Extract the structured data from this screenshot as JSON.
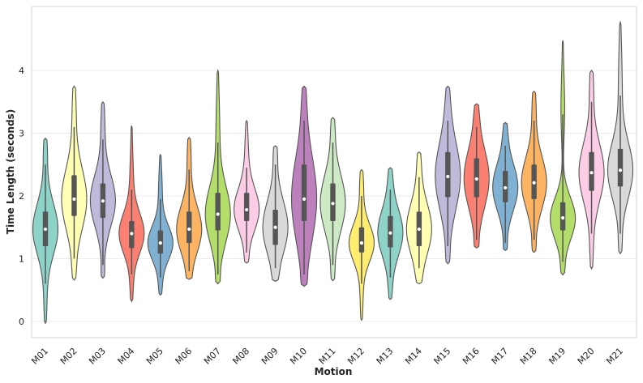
{
  "chart_data": {
    "type": "violin",
    "title": "",
    "xlabel": "Motion",
    "ylabel": "Time Length (seconds)",
    "ylim": [
      -0.25,
      4.9
    ],
    "yticks": [
      0,
      1,
      2,
      3,
      4
    ],
    "grid": true,
    "categories": [
      "M01",
      "M02",
      "M03",
      "M04",
      "M05",
      "M06",
      "M07",
      "M08",
      "M09",
      "M10",
      "M11",
      "M12",
      "M13",
      "M14",
      "M15",
      "M16",
      "M17",
      "M18",
      "M19",
      "M20",
      "M21"
    ],
    "colors": [
      "#8dd3c7",
      "#ffffb3",
      "#bebada",
      "#fb8072",
      "#80b1d3",
      "#fdb462",
      "#b3de69",
      "#fccde5",
      "#d9d9d9",
      "#bc80bd",
      "#ccebc5",
      "#ffed6f",
      "#8dd3c7",
      "#ffffb3",
      "#bebada",
      "#fb8072",
      "#80b1d3",
      "#fdb462",
      "#b3de69",
      "#fccde5",
      "#d9d9d9"
    ],
    "series": [
      {
        "name": "M01",
        "min": -0.03,
        "q1": 1.2,
        "median": 1.47,
        "q3": 1.75,
        "max": 2.92,
        "whisker_low": 0.6,
        "whisker_high": 2.5
      },
      {
        "name": "M02",
        "min": 0.66,
        "q1": 1.68,
        "median": 1.95,
        "q3": 2.33,
        "max": 3.75,
        "whisker_low": 1.0,
        "whisker_high": 3.1
      },
      {
        "name": "M03",
        "min": 0.69,
        "q1": 1.65,
        "median": 1.92,
        "q3": 2.2,
        "max": 3.5,
        "whisker_low": 0.9,
        "whisker_high": 2.9
      },
      {
        "name": "M04",
        "min": 0.32,
        "q1": 1.17,
        "median": 1.4,
        "q3": 1.6,
        "max": 3.12,
        "whisker_low": 0.75,
        "whisker_high": 2.1
      },
      {
        "name": "M05",
        "min": 0.42,
        "q1": 1.08,
        "median": 1.25,
        "q3": 1.45,
        "max": 2.66,
        "whisker_low": 0.7,
        "whisker_high": 1.95
      },
      {
        "name": "M06",
        "min": 0.67,
        "q1": 1.25,
        "median": 1.47,
        "q3": 1.75,
        "max": 2.93,
        "whisker_low": 0.8,
        "whisker_high": 2.42
      },
      {
        "name": "M07",
        "min": 0.6,
        "q1": 1.45,
        "median": 1.71,
        "q3": 2.05,
        "max": 4.0,
        "whisker_low": 0.75,
        "whisker_high": 2.85
      },
      {
        "name": "M08",
        "min": 0.93,
        "q1": 1.6,
        "median": 1.78,
        "q3": 2.05,
        "max": 3.2,
        "whisker_low": 1.1,
        "whisker_high": 2.45
      },
      {
        "name": "M09",
        "min": 0.64,
        "q1": 1.22,
        "median": 1.5,
        "q3": 1.78,
        "max": 2.8,
        "whisker_low": 0.85,
        "whisker_high": 2.5
      },
      {
        "name": "M10",
        "min": 0.56,
        "q1": 1.6,
        "median": 1.95,
        "q3": 2.5,
        "max": 3.75,
        "whisker_low": 0.75,
        "whisker_high": 3.2
      },
      {
        "name": "M11",
        "min": 0.65,
        "q1": 1.6,
        "median": 1.88,
        "q3": 2.2,
        "max": 3.25,
        "whisker_low": 0.9,
        "whisker_high": 2.85
      },
      {
        "name": "M12",
        "min": 0.02,
        "q1": 1.1,
        "median": 1.25,
        "q3": 1.5,
        "max": 2.42,
        "whisker_low": 0.6,
        "whisker_high": 2.0
      },
      {
        "name": "M13",
        "min": 0.35,
        "q1": 1.18,
        "median": 1.41,
        "q3": 1.68,
        "max": 2.45,
        "whisker_low": 0.7,
        "whisker_high": 2.1
      },
      {
        "name": "M14",
        "min": 0.6,
        "q1": 1.2,
        "median": 1.47,
        "q3": 1.75,
        "max": 2.7,
        "whisker_low": 0.85,
        "whisker_high": 2.3
      },
      {
        "name": "M15",
        "min": 0.92,
        "q1": 1.98,
        "median": 2.31,
        "q3": 2.7,
        "max": 3.75,
        "whisker_low": 1.2,
        "whisker_high": 3.2
      },
      {
        "name": "M16",
        "min": 1.17,
        "q1": 1.98,
        "median": 2.27,
        "q3": 2.6,
        "max": 3.47,
        "whisker_low": 1.3,
        "whisker_high": 3.1
      },
      {
        "name": "M17",
        "min": 1.13,
        "q1": 1.9,
        "median": 2.13,
        "q3": 2.4,
        "max": 3.17,
        "whisker_low": 1.25,
        "whisker_high": 2.8
      },
      {
        "name": "M18",
        "min": 1.1,
        "q1": 1.95,
        "median": 2.21,
        "q3": 2.5,
        "max": 3.67,
        "whisker_low": 1.3,
        "whisker_high": 3.2
      },
      {
        "name": "M19",
        "min": 0.74,
        "q1": 1.45,
        "median": 1.65,
        "q3": 1.9,
        "max": 4.48,
        "whisker_low": 0.95,
        "whisker_high": 3.3
      },
      {
        "name": "M20",
        "min": 0.84,
        "q1": 2.08,
        "median": 2.37,
        "q3": 2.7,
        "max": 4.0,
        "whisker_low": 1.4,
        "whisker_high": 3.5
      },
      {
        "name": "M21",
        "min": 1.08,
        "q1": 2.15,
        "median": 2.41,
        "q3": 2.75,
        "max": 4.77,
        "whisker_low": 1.4,
        "whisker_high": 3.6
      }
    ]
  }
}
